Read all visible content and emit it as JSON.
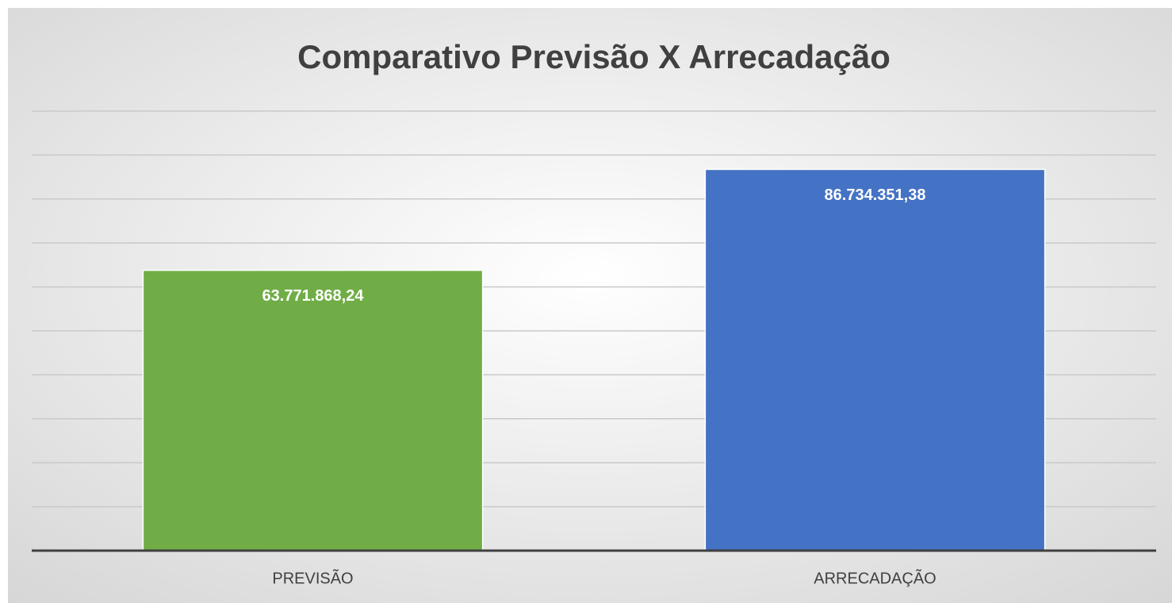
{
  "chart_data": {
    "type": "bar",
    "title": "Comparativo Previsão X Arrecadação",
    "categories": [
      "PREVISÃO",
      "ARRECADAÇÃO"
    ],
    "values": [
      63771868.24,
      86734351.38
    ],
    "value_labels": [
      "63.771.868,24",
      "86.734.351,38"
    ],
    "colors": [
      "#70ad47",
      "#4472c4"
    ],
    "ylim": [
      0,
      100000000
    ],
    "yticks": [
      0,
      10000000,
      20000000,
      30000000,
      40000000,
      50000000,
      60000000,
      70000000,
      80000000,
      90000000,
      100000000
    ],
    "grid": true
  }
}
